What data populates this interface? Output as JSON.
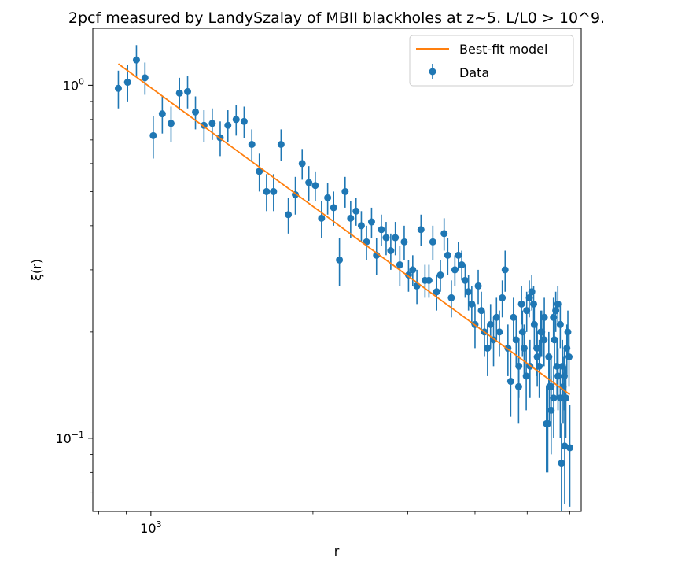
{
  "chart_data": {
    "type": "scatter",
    "title": "2pcf measured by LandySzalay of MBII blackholes at z~5. L/L0 > 10^9.",
    "xlabel": "r",
    "ylabel": "ξ(r)",
    "xscale": "log",
    "yscale": "log",
    "xlim": [
      780,
      6300
    ],
    "ylim": [
      0.062,
      1.45
    ],
    "x_ticks": [
      {
        "value": 1000,
        "base": "10",
        "exp": "3"
      }
    ],
    "y_ticks": [
      {
        "value": 1.0,
        "base": "10",
        "exp": "0"
      },
      {
        "value": 0.1,
        "base": "10",
        "exp": "−1"
      }
    ],
    "grid": false,
    "legend_position": "upper right",
    "colors": {
      "data": "#1f77b4",
      "model": "#ff7f0e"
    },
    "series": [
      {
        "name": "Best-fit model",
        "kind": "line",
        "x": [
          870,
          6000
        ],
        "y": [
          1.15,
          0.133
        ]
      },
      {
        "name": "Data",
        "kind": "errorbar",
        "points": [
          [
            870,
            0.98,
            0.12
          ],
          [
            905,
            1.02,
            0.12
          ],
          [
            940,
            1.18,
            0.12
          ],
          [
            975,
            1.05,
            0.11
          ],
          [
            1010,
            0.72,
            0.1
          ],
          [
            1050,
            0.83,
            0.1
          ],
          [
            1090,
            0.78,
            0.09
          ],
          [
            1130,
            0.95,
            0.1
          ],
          [
            1170,
            0.96,
            0.1
          ],
          [
            1210,
            0.84,
            0.09
          ],
          [
            1255,
            0.77,
            0.08
          ],
          [
            1300,
            0.78,
            0.08
          ],
          [
            1345,
            0.71,
            0.08
          ],
          [
            1390,
            0.77,
            0.08
          ],
          [
            1440,
            0.8,
            0.08
          ],
          [
            1490,
            0.79,
            0.08
          ],
          [
            1540,
            0.68,
            0.07
          ],
          [
            1590,
            0.57,
            0.07
          ],
          [
            1640,
            0.5,
            0.06
          ],
          [
            1690,
            0.5,
            0.06
          ],
          [
            1745,
            0.68,
            0.07
          ],
          [
            1800,
            0.43,
            0.05
          ],
          [
            1855,
            0.49,
            0.06
          ],
          [
            1910,
            0.6,
            0.06
          ],
          [
            1965,
            0.53,
            0.06
          ],
          [
            2020,
            0.52,
            0.05
          ],
          [
            2075,
            0.42,
            0.05
          ],
          [
            2130,
            0.48,
            0.05
          ],
          [
            2185,
            0.45,
            0.05
          ],
          [
            2240,
            0.32,
            0.05
          ],
          [
            2295,
            0.5,
            0.05
          ],
          [
            2350,
            0.42,
            0.05
          ],
          [
            2405,
            0.44,
            0.04
          ],
          [
            2460,
            0.4,
            0.04
          ],
          [
            2515,
            0.36,
            0.04
          ],
          [
            2570,
            0.41,
            0.04
          ],
          [
            2625,
            0.33,
            0.04
          ],
          [
            2680,
            0.39,
            0.04
          ],
          [
            2735,
            0.37,
            0.04
          ],
          [
            2790,
            0.34,
            0.04
          ],
          [
            2845,
            0.37,
            0.04
          ],
          [
            2900,
            0.31,
            0.04
          ],
          [
            2955,
            0.36,
            0.04
          ],
          [
            3010,
            0.29,
            0.03
          ],
          [
            3065,
            0.3,
            0.03
          ],
          [
            3120,
            0.27,
            0.03
          ],
          [
            3175,
            0.39,
            0.04
          ],
          [
            3230,
            0.28,
            0.03
          ],
          [
            3285,
            0.28,
            0.03
          ],
          [
            3340,
            0.36,
            0.04
          ],
          [
            3395,
            0.26,
            0.03
          ],
          [
            3450,
            0.29,
            0.03
          ],
          [
            3505,
            0.38,
            0.04
          ],
          [
            3560,
            0.33,
            0.04
          ],
          [
            3615,
            0.25,
            0.03
          ],
          [
            3670,
            0.3,
            0.03
          ],
          [
            3725,
            0.33,
            0.03
          ],
          [
            3780,
            0.31,
            0.03
          ],
          [
            3835,
            0.28,
            0.03
          ],
          [
            3890,
            0.26,
            0.03
          ],
          [
            3945,
            0.24,
            0.03
          ],
          [
            4000,
            0.21,
            0.03
          ],
          [
            4055,
            0.27,
            0.03
          ],
          [
            4110,
            0.23,
            0.03
          ],
          [
            4165,
            0.2,
            0.03
          ],
          [
            4220,
            0.18,
            0.03
          ],
          [
            4275,
            0.21,
            0.03
          ],
          [
            4330,
            0.19,
            0.03
          ],
          [
            4385,
            0.22,
            0.03
          ],
          [
            4440,
            0.2,
            0.03
          ],
          [
            4495,
            0.25,
            0.03
          ],
          [
            4550,
            0.3,
            0.04
          ],
          [
            4605,
            0.18,
            0.03
          ],
          [
            4660,
            0.145,
            0.03
          ],
          [
            4715,
            0.22,
            0.03
          ],
          [
            4770,
            0.19,
            0.03
          ],
          [
            4825,
            0.16,
            0.03
          ],
          [
            4880,
            0.24,
            0.03
          ],
          [
            4935,
            0.18,
            0.03
          ],
          [
            4990,
            0.23,
            0.03
          ],
          [
            5045,
            0.25,
            0.03
          ],
          [
            5100,
            0.26,
            0.03
          ],
          [
            5155,
            0.21,
            0.03
          ],
          [
            5210,
            0.18,
            0.03
          ],
          [
            5265,
            0.16,
            0.03
          ],
          [
            5320,
            0.2,
            0.03
          ],
          [
            5375,
            0.19,
            0.03
          ],
          [
            5430,
            0.11,
            0.03
          ],
          [
            5485,
            0.17,
            0.03
          ],
          [
            5540,
            0.14,
            0.03
          ],
          [
            5595,
            0.22,
            0.03
          ],
          [
            5650,
            0.23,
            0.03
          ],
          [
            5705,
            0.15,
            0.03
          ],
          [
            5760,
            0.21,
            0.03
          ],
          [
            5815,
            0.16,
            0.03
          ],
          [
            5870,
            0.095,
            0.03
          ],
          [
            5925,
            0.18,
            0.03
          ],
          [
            5980,
            0.17,
            0.03
          ],
          [
            6000,
            0.094,
            0.03
          ],
          [
            5790,
            0.085,
            0.025
          ],
          [
            5700,
            0.24,
            0.03
          ],
          [
            5620,
            0.19,
            0.03
          ],
          [
            5540,
            0.12,
            0.03
          ],
          [
            5460,
            0.11,
            0.03
          ],
          [
            5380,
            0.22,
            0.03
          ],
          [
            5300,
            0.2,
            0.03
          ],
          [
            5220,
            0.17,
            0.03
          ],
          [
            5140,
            0.24,
            0.03
          ],
          [
            5060,
            0.16,
            0.03
          ],
          [
            4980,
            0.15,
            0.03
          ],
          [
            4900,
            0.2,
            0.03
          ],
          [
            4820,
            0.14,
            0.03
          ],
          [
            5900,
            0.13,
            0.03
          ],
          [
            5950,
            0.2,
            0.03
          ],
          [
            5860,
            0.15,
            0.03
          ],
          [
            5830,
            0.14,
            0.03
          ],
          [
            5760,
            0.13,
            0.03
          ],
          [
            5680,
            0.16,
            0.03
          ],
          [
            5600,
            0.13,
            0.03
          ],
          [
            5500,
            0.14,
            0.03
          ]
        ]
      }
    ]
  }
}
